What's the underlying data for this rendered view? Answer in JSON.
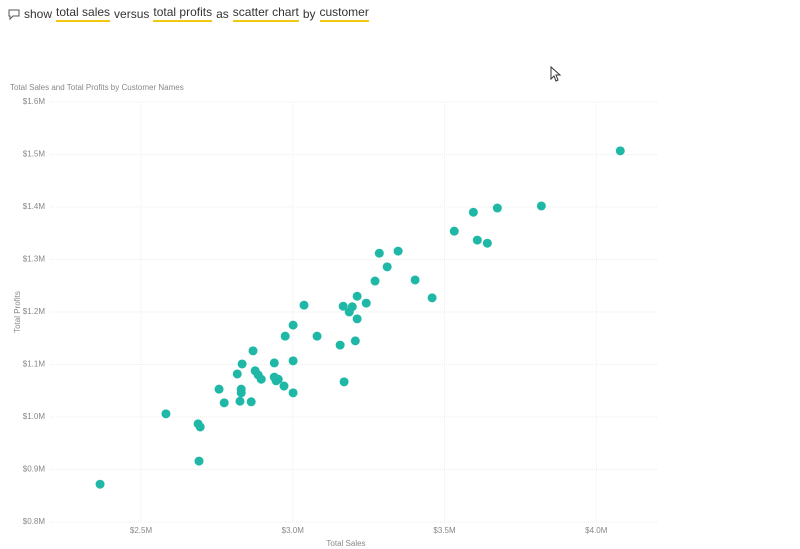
{
  "query": [
    {
      "text": "show",
      "highlight": false
    },
    {
      "text": "total sales",
      "highlight": true
    },
    {
      "text": "versus",
      "highlight": false
    },
    {
      "text": "total profits",
      "highlight": true
    },
    {
      "text": "as",
      "highlight": false
    },
    {
      "text": "scatter chart",
      "highlight": true
    },
    {
      "text": "by",
      "highlight": false
    },
    {
      "text": "customer",
      "highlight": true
    }
  ],
  "chart_data": {
    "type": "scatter",
    "title": "Total Sales and Total Profits by Customer Names",
    "x_label": "Total Sales",
    "y_label": "Total Profits",
    "color": "#1fb8a6",
    "grid": true,
    "xlim": [
      2200000,
      4200000
    ],
    "xticks": [
      {
        "value": 2500000,
        "label": "$2.5M"
      },
      {
        "value": 3000000,
        "label": "$3.0M"
      },
      {
        "value": 3500000,
        "label": "$3.5M"
      },
      {
        "value": 4000000,
        "label": "$4.0M"
      }
    ],
    "ylim": [
      800000,
      1600000
    ],
    "yticks": [
      {
        "value": 800000,
        "label": "$0.8M"
      },
      {
        "value": 900000,
        "label": "$0.9M"
      },
      {
        "value": 1000000,
        "label": "$1.0M"
      },
      {
        "value": 1100000,
        "label": "$1.1M"
      },
      {
        "value": 1200000,
        "label": "$1.2M"
      },
      {
        "value": 1300000,
        "label": "$1.3M"
      },
      {
        "value": 1400000,
        "label": "$1.4M"
      },
      {
        "value": 1500000,
        "label": "$1.5M"
      },
      {
        "value": 1600000,
        "label": "$1.6M"
      }
    ],
    "x": [
      2365000,
      2582000,
      2688000,
      2695000,
      2691000,
      2757000,
      2774000,
      2817000,
      2833000,
      2830000,
      2830000,
      2826000,
      2869000,
      2863000,
      2876000,
      2886000,
      2896000,
      2939000,
      2939000,
      2952000,
      2945000,
      2975000,
      2971000,
      3001000,
      3001000,
      3001000,
      3037000,
      3080000,
      3156000,
      3166000,
      3169000,
      3186000,
      3196000,
      3206000,
      3212000,
      3212000,
      3242000,
      3271000,
      3285000,
      3311000,
      3347000,
      3403000,
      3459000,
      3532000,
      3595000,
      3608000,
      3641000,
      3674000,
      3819000,
      4079000
    ],
    "values": [
      872000,
      1006000,
      987000,
      981000,
      916000,
      1053000,
      1027000,
      1082000,
      1101000,
      1053000,
      1046000,
      1030000,
      1126000,
      1029000,
      1088000,
      1080000,
      1072000,
      1103000,
      1076000,
      1072000,
      1069000,
      1154000,
      1059000,
      1107000,
      1175000,
      1046000,
      1213000,
      1154000,
      1137000,
      1211000,
      1067000,
      1200000,
      1210000,
      1145000,
      1230000,
      1187000,
      1217000,
      1259000,
      1312000,
      1286000,
      1316000,
      1261000,
      1227000,
      1354000,
      1390000,
      1337000,
      1331000,
      1398000,
      1402000,
      1507000
    ]
  }
}
